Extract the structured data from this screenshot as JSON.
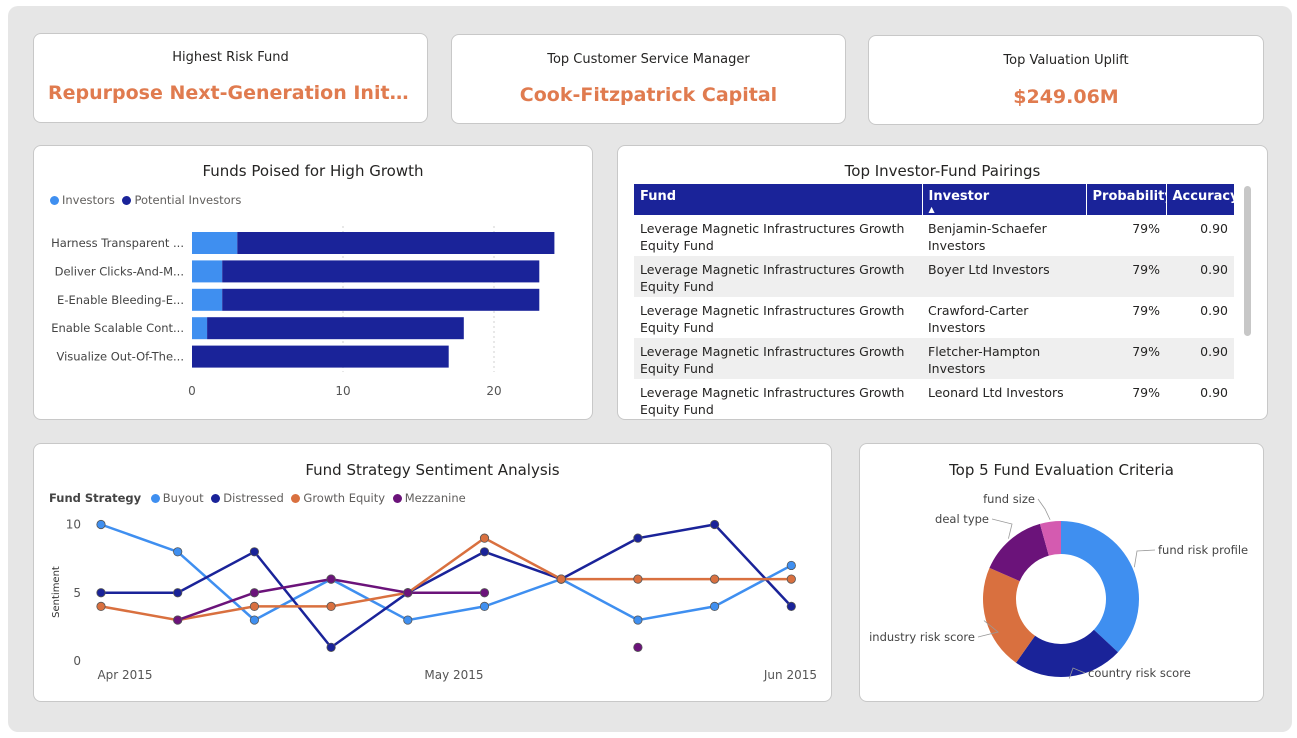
{
  "kpis": [
    {
      "label": "Highest Risk Fund",
      "value": "Repurpose Next-Generation Initiatives D..."
    },
    {
      "label": "Top Customer Service Manager",
      "value": "Cook-Fitzpatrick Capital"
    },
    {
      "label": "Top Valuation Uplift",
      "value": "$249.06M"
    }
  ],
  "colors": {
    "investors": "#3f8ff0",
    "potential_investors": "#1a2399",
    "buyout": "#3f8ff0",
    "distressed": "#1a2399",
    "growth_equity": "#d9703f",
    "mezzanine": "#6b137a",
    "accent": "#e07b4f"
  },
  "growth_chart": {
    "title": "Funds Poised for High Growth",
    "legend": [
      "Investors",
      "Potential Investors"
    ],
    "chart_data": {
      "type": "bar",
      "orientation": "horizontal",
      "stacked": true,
      "categories": [
        "Harness Transparent ...",
        "Deliver Clicks-And-M...",
        "E-Enable Bleeding-E...",
        "Enable Scalable Cont...",
        "Visualize Out-Of-The..."
      ],
      "series": [
        {
          "name": "Investors",
          "values": [
            3,
            2,
            2,
            1,
            0
          ]
        },
        {
          "name": "Potential Investors",
          "values": [
            21,
            21,
            21,
            17,
            17
          ]
        }
      ],
      "xticks": [
        "0",
        "10",
        "20"
      ],
      "xlim": [
        0,
        26
      ]
    }
  },
  "pairings": {
    "title": "Top Investor-Fund Pairings",
    "columns": [
      "Fund",
      "Investor",
      "Probability",
      "Accuracy"
    ],
    "rows": [
      {
        "fund": "Leverage Magnetic Infrastructures Growth Equity Fund",
        "investor": "Benjamin-Schaefer Investors",
        "probability": "79%",
        "accuracy": "0.90"
      },
      {
        "fund": "Leverage Magnetic Infrastructures Growth Equity Fund",
        "investor": "Boyer Ltd Investors",
        "probability": "79%",
        "accuracy": "0.90"
      },
      {
        "fund": "Leverage Magnetic Infrastructures Growth Equity Fund",
        "investor": "Crawford-Carter Investors",
        "probability": "79%",
        "accuracy": "0.90"
      },
      {
        "fund": "Leverage Magnetic Infrastructures Growth Equity Fund",
        "investor": "Fletcher-Hampton Investors",
        "probability": "79%",
        "accuracy": "0.90"
      },
      {
        "fund": "Leverage Magnetic Infrastructures Growth Equity Fund",
        "investor": "Leonard Ltd Investors",
        "probability": "79%",
        "accuracy": "0.90"
      }
    ]
  },
  "sentiment_chart": {
    "title": "Fund Strategy Sentiment Analysis",
    "legend_title": "Fund Strategy",
    "legend": [
      "Buyout",
      "Distressed",
      "Growth Equity",
      "Mezzanine"
    ],
    "ylabel": "Sentiment",
    "yticks": [
      "0",
      "5",
      "10"
    ],
    "xticks": [
      "Apr 2015",
      "May 2015",
      "Jun 2015"
    ],
    "chart_data": {
      "type": "line",
      "x": [
        0,
        1,
        2,
        3,
        4,
        5,
        6,
        7,
        8,
        9
      ],
      "ylim": [
        0,
        10
      ],
      "series": [
        {
          "name": "Buyout",
          "values": [
            10,
            8,
            3,
            6,
            3,
            4,
            6,
            3,
            4,
            7
          ]
        },
        {
          "name": "Distressed",
          "values": [
            5,
            5,
            8,
            1,
            5,
            8,
            6,
            9,
            10,
            4
          ]
        },
        {
          "name": "Growth Equity",
          "values": [
            4,
            3,
            4,
            4,
            5,
            9,
            6,
            6,
            6,
            6
          ]
        },
        {
          "name": "Mezzanine",
          "values": [
            null,
            3,
            5,
            6,
            5,
            5,
            null,
            1,
            null,
            null
          ]
        }
      ]
    }
  },
  "criteria_chart": {
    "title": "Top 5 Fund Evaluation Criteria",
    "chart_data": {
      "type": "pie",
      "donut": true,
      "labels": [
        "fund risk profile",
        "country risk score",
        "industry risk score",
        "deal type",
        "fund size"
      ],
      "values": [
        34,
        21,
        20,
        13,
        4
      ]
    }
  }
}
